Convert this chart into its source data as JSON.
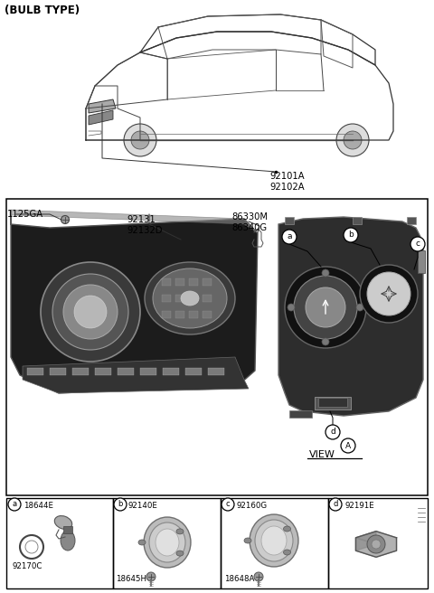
{
  "title": "(BULB TYPE)",
  "bg_color": "#ffffff",
  "text_color": "#000000",
  "label_92101A_92102A": "92101A\n92102A",
  "label_86330M_86340G": "86330M\n86340G",
  "label_92131_92132D": "92131\n92132D",
  "label_1125GA": "1125GA",
  "label_92191E": "92191E",
  "label_VIEW": "VIEW",
  "callouts": [
    "a",
    "b",
    "c",
    "d"
  ],
  "bottom_a_labels": [
    "18644E",
    "92170C"
  ],
  "bottom_b_labels": [
    "92140E",
    "18645H"
  ],
  "bottom_c_labels": [
    "92160G",
    "18648A"
  ],
  "bottom_d_labels": [
    "92191E"
  ],
  "car_color": "#444444",
  "headlight_dark": "#1c1c1c",
  "headlight_mid": "#555555",
  "headlight_light": "#aaaaaa",
  "back_housing_color": "#2d2d2d",
  "ring_color": "#888888",
  "ring_light": "#cccccc"
}
